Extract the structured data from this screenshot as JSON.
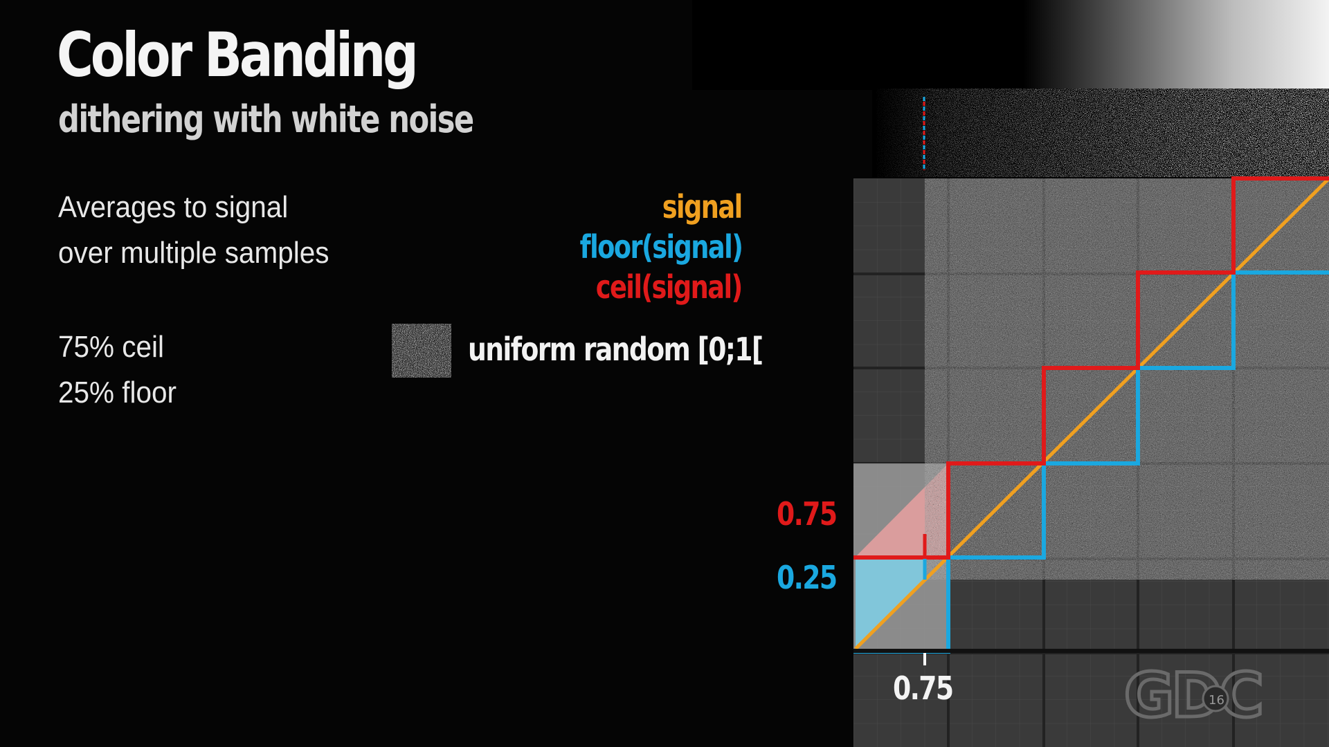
{
  "slide": {
    "title": "Color Banding",
    "subtitle": "dithering with white noise",
    "body_lines": [
      "Averages to signal",
      "over multiple samples"
    ],
    "stats": [
      "75% ceil",
      "25% floor"
    ]
  },
  "legend": {
    "signal": "signal",
    "floor": "floor(signal)",
    "ceil": "ceil(signal)",
    "noise_label": "uniform random [0;1["
  },
  "diagram": {
    "label_ceil_value": "0.75",
    "label_floor_value": "0.25",
    "label_x_value": "0.75"
  },
  "watermark": {
    "text": "GDC",
    "year": "16"
  },
  "colors": {
    "signal": "#f0a020",
    "floor": "#1aa8e0",
    "ceil": "#e01a1a",
    "background": "#000000",
    "grid_bg": "#3a3a3a"
  }
}
